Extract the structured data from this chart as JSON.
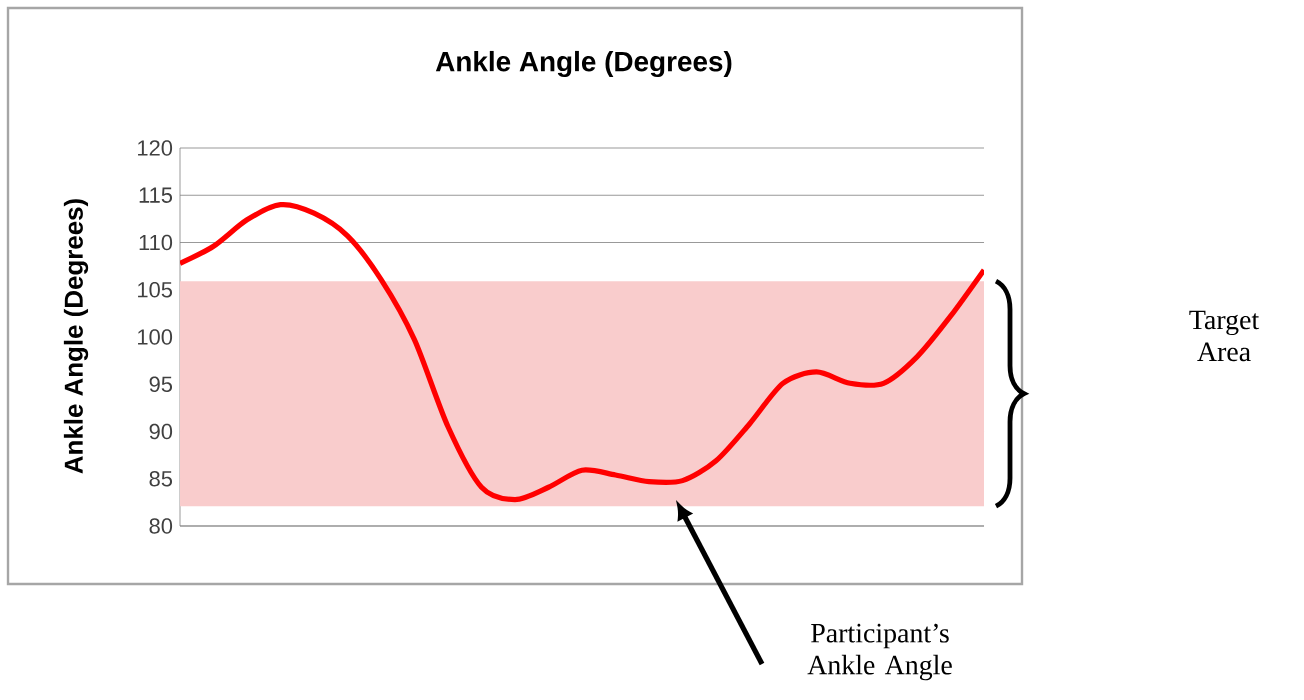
{
  "chart_data": {
    "type": "line",
    "title": "Ankle Angle (Degrees)",
    "ylabel": "Ankle Angle (Degrees)",
    "categories": [
      null,
      null,
      null,
      null,
      null,
      null,
      null,
      null,
      null,
      null,
      null,
      null,
      null,
      null,
      null,
      null,
      null,
      null,
      null,
      null,
      null,
      null,
      null,
      null,
      null
    ],
    "series": [
      {
        "color": "#ff0000",
        "values": [
          107.8,
          109.6,
          112.4,
          114.0,
          113.1,
          110.7,
          106.1,
          99.7,
          90.5,
          84.1,
          82.8,
          84.1,
          85.9,
          85.4,
          84.7,
          84.8,
          86.9,
          90.8,
          95.1,
          96.3,
          95.1,
          95.1,
          97.9,
          102.2,
          107.1
        ]
      }
    ],
    "ylim": [
      80,
      120
    ],
    "yticks": [
      80,
      85,
      90,
      95,
      100,
      105,
      110,
      115,
      120
    ],
    "grid": "y",
    "tick_labels": "y",
    "bands": [
      {
        "axis": "y",
        "from": 82.1,
        "to": 105.9,
        "color": "#f9cccc"
      }
    ],
    "annotations": [
      "Target Area",
      "Participant’s Ankle Angle"
    ]
  }
}
